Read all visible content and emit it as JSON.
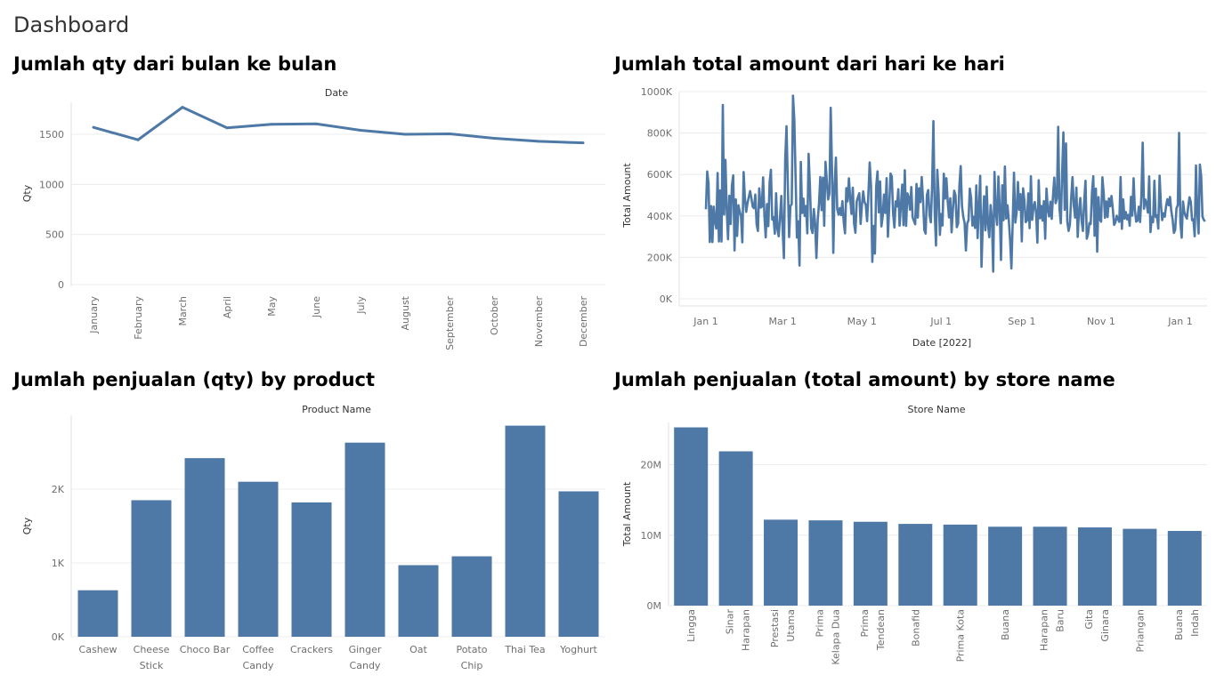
{
  "page": {
    "title": "Dashboard"
  },
  "colors": {
    "series": "#4e79a7"
  },
  "charts": {
    "monthly_qty": {
      "title": "Jumlah qty dari bulan ke bulan",
      "header": "Date",
      "ylabel": "Qty",
      "y_ticks": [
        "0",
        "500",
        "1000",
        "1500"
      ]
    },
    "daily_amount": {
      "title": "Jumlah total amount dari hari ke hari",
      "ylabel": "Total Amount",
      "xlabel": "Date [2022]",
      "y_ticks": [
        "0K",
        "200K",
        "400K",
        "600K",
        "800K",
        "1000K"
      ],
      "x_ticks": [
        "Jan 1",
        "Mar 1",
        "May 1",
        "Jul 1",
        "Sep 1",
        "Nov 1",
        "Jan 1"
      ]
    },
    "product_qty": {
      "title": "Jumlah penjualan (qty) by product",
      "header": "Product Name",
      "ylabel": "Qty",
      "y_ticks": [
        "0K",
        "1K",
        "2K"
      ]
    },
    "store_amount": {
      "title": "Jumlah penjualan (total amount) by store name",
      "header": "Store Name",
      "ylabel": "Total Amount",
      "y_ticks": [
        "0M",
        "10M",
        "20M"
      ]
    }
  },
  "chart_data": [
    {
      "type": "line",
      "title": "Jumlah qty dari bulan ke bulan",
      "xlabel": "Date",
      "ylabel": "Qty",
      "categories": [
        "January",
        "February",
        "March",
        "April",
        "May",
        "June",
        "July",
        "August",
        "September",
        "October",
        "November",
        "December"
      ],
      "values": [
        1570,
        1445,
        1770,
        1565,
        1600,
        1605,
        1540,
        1500,
        1505,
        1460,
        1430,
        1415
      ],
      "ylim": [
        0,
        1820
      ],
      "grid": true
    },
    {
      "type": "line",
      "title": "Jumlah total amount dari hari ke hari",
      "xlabel": "Date [2022]",
      "ylabel": "Total Amount",
      "x_start": "2022-01-01",
      "x_end": "2023-01-01",
      "values": [
        432101,
        614734,
        557112,
        274216,
        447952,
        273880,
        445126,
        374600,
        338960,
        607051,
        277117,
        522811,
        276542,
        935174,
        407063,
        670239,
        431738,
        287011,
        497826,
        360713,
        547513,
        595637,
        233716,
        479683,
        303373,
        451510,
        421584,
        398648,
        272416,
        612163,
        484219,
        419659,
        462553,
        491286,
        520209,
        484281,
        444429,
        437290,
        503219,
        359659,
        327542,
        532849,
        440022,
        444609,
        585963,
        401484,
        296294,
        457478,
        350432,
        561897,
        622632,
        382554,
        393542,
        314136,
        509612,
        335785,
        301622,
        395063,
        496616,
        336003,
        196300,
        674133,
        833097,
        552407,
        298012,
        448008,
        457155,
        980213,
        865011,
        583227,
        295559,
        373993,
        160474,
        660812,
        414212,
        483662,
        399522,
        447553,
        315856,
        699990,
        546604,
        340669,
        317526,
        433283,
        365225,
        197045,
        380510,
        460290,
        587617,
        427744,
        584656,
        352452,
        661023,
        567452,
        479373,
        507722,
        922008,
        622599,
        221802,
        548521,
        681458,
        434398,
        406339,
        437914,
        404050,
        471103,
        370958,
        315839,
        534255,
        470102,
        581209,
        483686,
        409532,
        536225,
        361734,
        318652,
        470108,
        491303,
        509719,
        361432,
        451633,
        518419,
        467609,
        453264,
        374664,
        509669,
        658016,
        544466,
        178553,
        351646,
        218224,
        543599,
        614924,
        417045,
        566226,
        349287,
        398489,
        503155,
        414103,
        582559,
        299451,
        442112,
        604493,
        590429,
        411574,
        344290,
        470130,
        445611,
        528826,
        353264,
        450627,
        551474,
        355416,
        620303,
        351932,
        509103,
        489063,
        429993,
        539580,
        394216,
        375848,
        359698,
        554734,
        392011,
        533617,
        466564,
        587919,
        479722,
        332405,
        314785,
        501016,
        524733,
        405785,
        369101,
        545719,
        857521,
        418694,
        257216,
        622564,
        506662,
        308564,
        409143,
        353602,
        603624,
        483453,
        581616,
        470849,
        392669,
        485549,
        320806,
        431893,
        521577,
        499233,
        345683,
        363016,
        546312,
        640574,
        447519,
        395864,
        366011,
        232908,
        363493,
        379221,
        532081,
        486153,
        353493,
        396101,
        342155,
        547562,
        293287,
        447848,
        593640,
        154848,
        364581,
        495211,
        330154,
        541620,
        357733,
        297307,
        452826,
        387542,
        131325,
        612592,
        421082,
        356659,
        590649,
        437848,
        187659,
        548009,
        379686,
        638911,
        387575,
        451232,
        379808,
        284778,
        146342,
        368306,
        608911,
        367919,
        415564,
        563452,
        429813,
        505232,
        277211,
        532856,
        473000,
        369733,
        378564,
        509112,
        340653,
        591713,
        381215,
        442025,
        466813,
        413412,
        270811,
        572227,
        388520,
        448316,
        377342,
        471566,
        290024,
        531919,
        431203,
        397311,
        468637,
        385633,
        496640,
        584853,
        461416,
        483049,
        830158,
        437412,
        364281,
        603155,
        803224,
        429604,
        749913,
        371911,
        327623,
        359005,
        487913,
        587452,
        451522,
        392008,
        536623,
        298542,
        422702,
        486233,
        377121,
        327602,
        469212,
        569611,
        290501,
        314202,
        365423,
        361217,
        513616,
        591523,
        304251,
        532221,
        227612,
        490911,
        384522,
        372212,
        586611,
        509234,
        391020,
        470224,
        394617,
        484224,
        446813,
        496313,
        433301,
        356810,
        368852,
        401112,
        384152,
        371523,
        588024,
        337901,
        479832,
        386852,
        418824,
        383215,
        404825,
        352610,
        492034,
        401254,
        582003,
        429024,
        372531,
        376853,
        444602,
        370504,
        498311,
        753531,
        435403,
        479623,
        460825,
        416121,
        591230,
        321902,
        395022,
        369802,
        570213,
        394624,
        402451,
        338602,
        594016,
        456412,
        379620,
        412823,
        396113,
        448633,
        480822,
        451024,
        491613,
        424002,
        383405,
        318254,
        332654,
        437104,
        452416,
        800653,
        365802,
        295020,
        469831,
        420033,
        398832,
        387120,
        443524,
        490230,
        467812,
        379302,
        383712,
        301852,
        643821,
        414823,
        315223,
        648001,
        592320,
        396620,
        381302,
        373412
      ],
      "ylim": [
        0,
        1000000
      ],
      "grid": true
    },
    {
      "type": "bar",
      "title": "Jumlah penjualan (qty) by product",
      "xlabel": "Product Name",
      "ylabel": "Qty",
      "categories": [
        "Cashew",
        "Cheese Stick",
        "Choco Bar",
        "Coffee Candy",
        "Crackers",
        "Ginger Candy",
        "Oat",
        "Potato Chip",
        "Thai Tea",
        "Yoghurt"
      ],
      "values": [
        630,
        1850,
        2420,
        2100,
        1820,
        2630,
        970,
        1090,
        2860,
        1970
      ],
      "ylim": [
        0,
        3000
      ],
      "grid": true
    },
    {
      "type": "bar",
      "title": "Jumlah penjualan (total amount) by store name",
      "xlabel": "Store Name",
      "ylabel": "Total Amount",
      "categories": [
        "Lingga",
        "Sinar Harapan",
        "Prestasi Utama",
        "Prima Kelapa Dua",
        "Prima Tendean",
        "Bonafid",
        "Prima Kota",
        "Buana",
        "Harapan Baru",
        "Gita Ginara",
        "Priangan",
        "Buana Indah"
      ],
      "values": [
        25300000,
        21900000,
        12200000,
        12100000,
        11900000,
        11600000,
        11500000,
        11200000,
        11200000,
        11100000,
        10900000,
        10600000
      ],
      "ylim": [
        0,
        26000000
      ],
      "grid": true
    }
  ]
}
